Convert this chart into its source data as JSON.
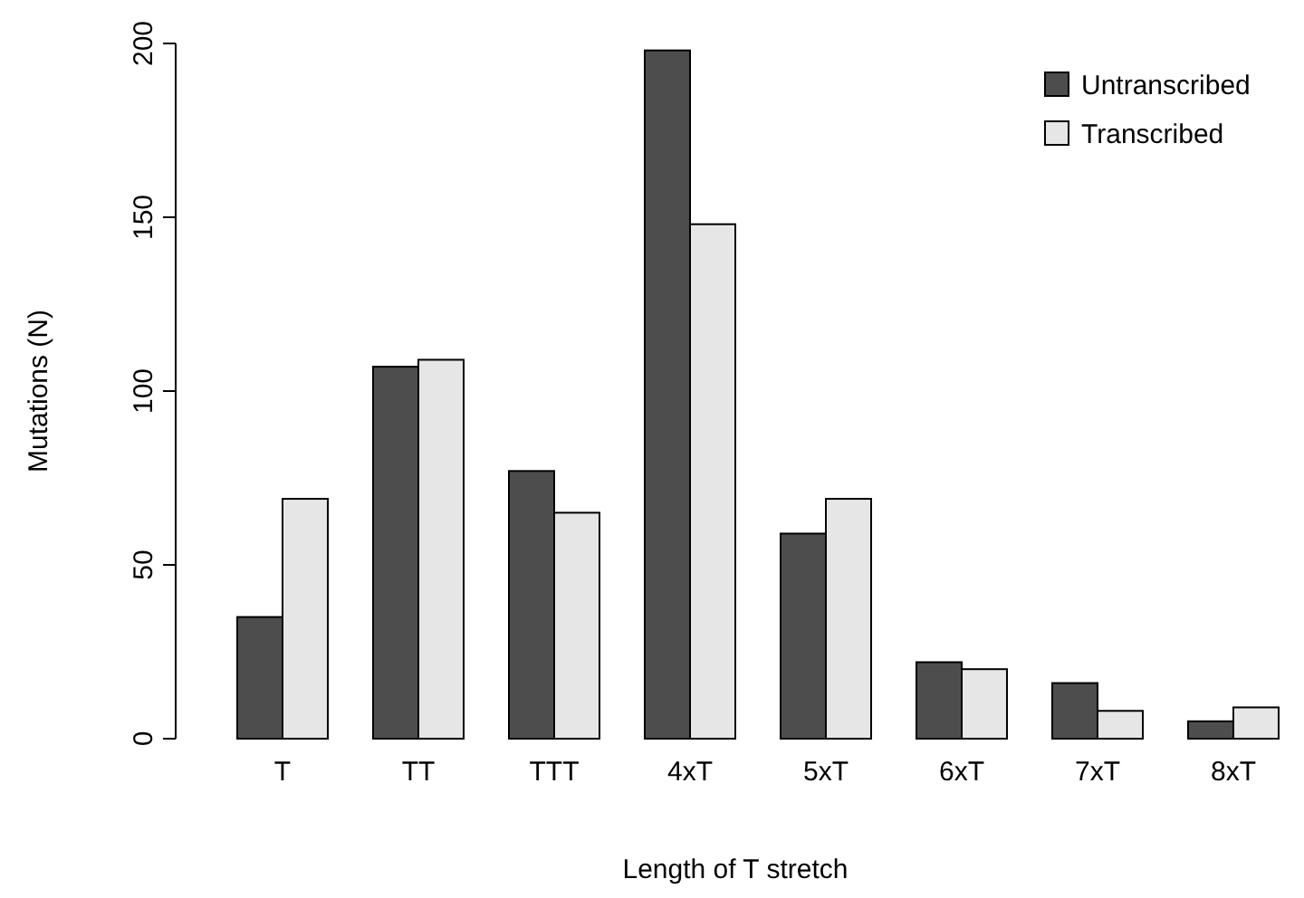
{
  "chart_data": {
    "type": "bar",
    "xlabel": "Length of T stretch",
    "ylabel": "Mutations (N)",
    "categories": [
      "T",
      "TT",
      "TTT",
      "4xT",
      "5xT",
      "6xT",
      "7xT",
      "8xT"
    ],
    "series": [
      {
        "name": "Untranscribed",
        "color": "#4d4d4d",
        "values": [
          35,
          107,
          77,
          198,
          59,
          22,
          16,
          5
        ]
      },
      {
        "name": "Transcribed",
        "color": "#e6e6e6",
        "values": [
          69,
          109,
          65,
          148,
          69,
          20,
          8,
          9
        ]
      }
    ],
    "ylim": [
      0,
      200
    ],
    "yticks": [
      0,
      50,
      100,
      150,
      200
    ],
    "legend": "top right",
    "grid": false
  }
}
